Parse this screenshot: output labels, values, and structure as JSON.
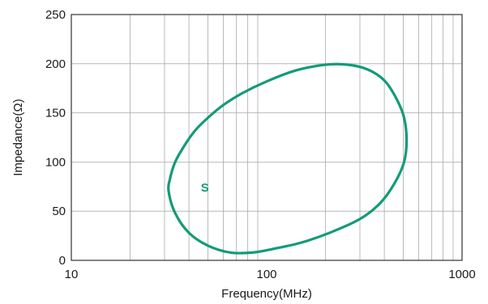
{
  "chart_data": {
    "type": "line",
    "title": "",
    "xlabel": "Frequency(MHz)",
    "ylabel": "Impedance(Ω)",
    "x_scale": "log",
    "xlim": [
      10,
      1000
    ],
    "ylim": [
      0,
      250
    ],
    "x_ticks": [
      10,
      100,
      1000
    ],
    "x_tick_labels": [
      "10",
      "100",
      "1000"
    ],
    "y_ticks": [
      0,
      50,
      100,
      150,
      200,
      250
    ],
    "y_tick_labels": [
      "0",
      "50",
      "100",
      "150",
      "200",
      "250"
    ],
    "grid": true,
    "colors": {
      "series": "#139b77",
      "grid": "#aaaaaa",
      "frame": "#333333"
    },
    "series": [
      {
        "name": "S",
        "x": [
          31.5,
          32,
          34,
          38,
          43,
          50,
          60,
          75,
          100,
          140,
          200,
          260,
          330,
          400,
          460,
          505,
          520,
          505,
          450,
          380,
          300,
          210,
          150,
          110,
          85,
          65,
          50,
          40,
          34,
          31.5
        ],
        "y": [
          70,
          83,
          100,
          117,
          132,
          145,
          158,
          170,
          182,
          193,
          199,
          199,
          194,
          183,
          165,
          145,
          122,
          100,
          78,
          58,
          42,
          28,
          18,
          12,
          8,
          8,
          15,
          28,
          48,
          70
        ]
      }
    ]
  }
}
